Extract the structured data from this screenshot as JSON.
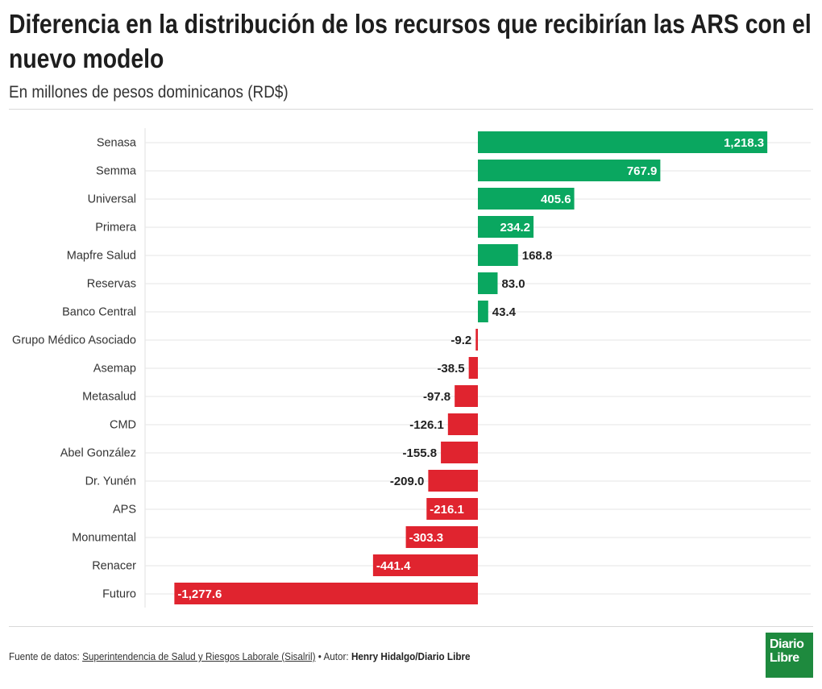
{
  "header": {
    "title": "Diferencia en la distribución de los recursos que recibirían las ARS con el nuevo modelo",
    "subtitle": "En millones de pesos dominicanos (RD$)"
  },
  "footer": {
    "source_prefix": "Fuente de datos:",
    "source_link": "Superintendencia de Salud y Riesgos Laborale (Sisalril)",
    "author_prefix": "• Autor:",
    "author": "Henry Hidalgo/Diario Libre"
  },
  "logo": {
    "line1": "Diario",
    "line2": "Libre",
    "color": "#1e8a3e"
  },
  "colors": {
    "positive": "#0aa760",
    "negative": "#e0242f",
    "grid": "#e6e6e6"
  },
  "chart_data": {
    "type": "bar",
    "orientation": "horizontal",
    "categories": [
      "Senasa",
      "Semma",
      "Universal",
      "Primera",
      "Mapfre Salud",
      "Reservas",
      "Banco Central",
      "Grupo Médico Asociado",
      "Asemap",
      "Metasalud",
      "CMD",
      "Abel González",
      "Dr. Yunén",
      "APS",
      "Monumental",
      "Renacer",
      "Futuro"
    ],
    "values": [
      1218.3,
      767.9,
      405.6,
      234.2,
      168.8,
      83.0,
      43.4,
      -9.2,
      -38.5,
      -97.8,
      -126.1,
      -155.8,
      -209.0,
      -216.1,
      -303.3,
      -441.4,
      -1277.6
    ],
    "labels": [
      "1,218.3",
      "767.9",
      "405.6",
      "234.2",
      "168.8",
      "83.0",
      "43.4",
      "-9.2",
      "-38.5",
      "-97.8",
      "-126.1",
      "-155.8",
      "-209.0",
      "-216.1",
      "-303.3",
      "-441.4",
      "-1,277.6"
    ],
    "xlim": [
      -1300,
      1400
    ],
    "grid": true,
    "legend": "none"
  }
}
